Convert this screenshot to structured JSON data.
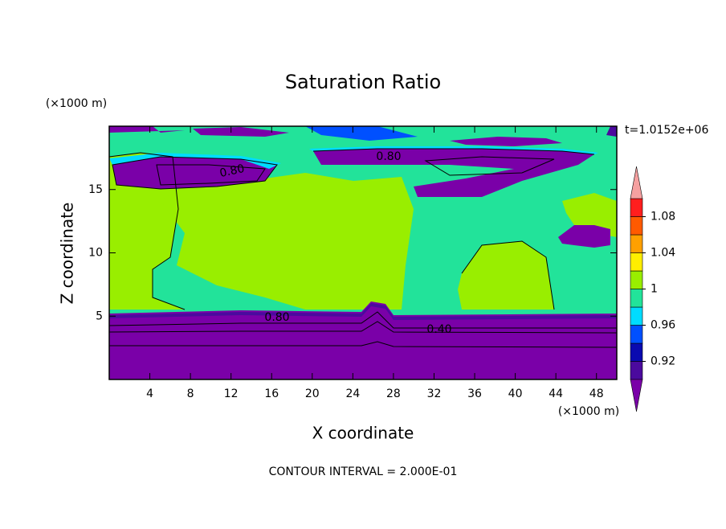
{
  "chart_data": {
    "type": "contour",
    "title": "Saturation Ratio",
    "xlabel": "X coordinate",
    "ylabel": "Z coordinate",
    "x_unit": "(×1000 m)",
    "y_unit": "(×1000 m)",
    "time_label": "t=1.0152e+06",
    "footer": "CONTOUR INTERVAL = 2.000E-01",
    "xlim": [
      0,
      50
    ],
    "ylim": [
      0,
      20
    ],
    "xticks": [
      4,
      8,
      12,
      16,
      20,
      24,
      28,
      32,
      36,
      40,
      44,
      48
    ],
    "yticks": [
      5,
      10,
      15
    ],
    "colorbar": {
      "levels": [
        0.9,
        0.92,
        0.94,
        0.96,
        0.98,
        1,
        1.02,
        1.04,
        1.06,
        1.08,
        1.1
      ],
      "colors": [
        "#4b0a9e",
        "#0a0ab0",
        "#0050ff",
        "#00dcff",
        "#22e39a",
        "#99ee00",
        "#ffee00",
        "#ffa000",
        "#ff5a00",
        "#ff1e1e"
      ],
      "under_color": "#7a00a8",
      "over_color": "#f5a0a0",
      "ticks": [
        0.92,
        0.96,
        1,
        1.04,
        1.08
      ]
    },
    "contour_labels": [
      {
        "value": 0.8,
        "label": "0.80"
      },
      {
        "value": 0.8,
        "label": "0.80"
      },
      {
        "value": 0.8,
        "label": "0.80"
      },
      {
        "value": 0.4,
        "label": "0.40"
      }
    ]
  }
}
